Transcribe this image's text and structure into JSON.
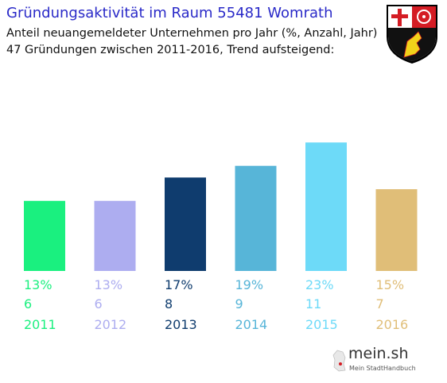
{
  "header": {
    "title": "Gründungsaktivität im Raum 55481 Womrath",
    "subtitle_line1": "Anteil neuangemeldeter Unternehmen pro Jahr (%, Anzahl, Jahr)",
    "subtitle_line2": "47 Gründungen zwischen 2011-2016, Trend aufsteigend:"
  },
  "brand": {
    "name": "mein.sh",
    "tagline": "Mein StadtHandbuch"
  },
  "colors": {
    "title": "#2a2ac8",
    "bars": [
      "#1af07f",
      "#adadf0",
      "#0f3c6e",
      "#57b5d8",
      "#6ddaf8",
      "#e0be78"
    ]
  },
  "chart_data": {
    "type": "bar",
    "categories": [
      "2011",
      "2012",
      "2013",
      "2014",
      "2015",
      "2016"
    ],
    "values": [
      6,
      6,
      8,
      9,
      11,
      7
    ],
    "percentages": [
      "13%",
      "13%",
      "17%",
      "19%",
      "23%",
      "15%"
    ],
    "counts": [
      "6",
      "6",
      "8",
      "9",
      "11",
      "7"
    ],
    "title": "Gründungsaktivität im Raum 55481 Womrath",
    "xlabel": "",
    "ylabel": ""
  }
}
